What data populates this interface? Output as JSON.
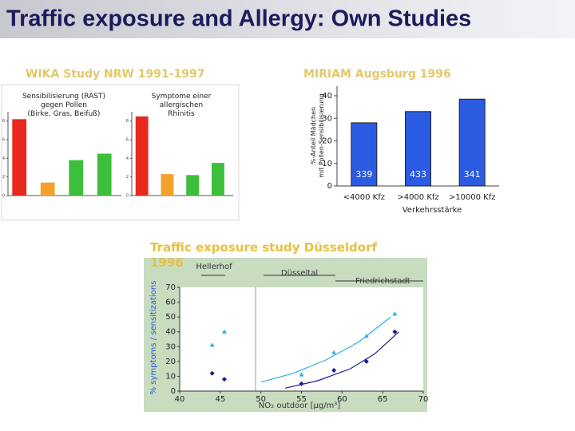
{
  "title": "Traffic exposure and Allergy: Own Studies",
  "chart_data": [
    {
      "type": "bar",
      "title": "WIKA Study NRW 1991-1997",
      "subtitle": "Sensibilisierung (RAST) gegen Pollen (Birke, Gras, Beifuß)",
      "values": [
        8.2,
        1.4,
        3.8,
        4.5
      ],
      "colors": [
        "#e8281c",
        "#f5a02a",
        "#3cc03c",
        "#3cc03c"
      ],
      "ylim": [
        0,
        9
      ],
      "yticks": [
        0,
        2,
        4,
        6,
        8
      ]
    },
    {
      "type": "bar",
      "subtitle": "Symptome einer allergischen Rhinitis",
      "values": [
        8.5,
        2.3,
        2.2,
        3.5
      ],
      "colors": [
        "#e8281c",
        "#f5a02a",
        "#3cc03c",
        "#3cc03c"
      ],
      "ylim": [
        0,
        9
      ],
      "yticks": [
        0,
        2,
        4,
        6,
        8
      ]
    },
    {
      "type": "bar",
      "title": "MIRIAM Augsburg 1996",
      "ylabel": "%-Anteil Mädchen mit Pollen-Sensibilisierung",
      "xlabel": "Verkehrsstärke",
      "categories": [
        "<4000 Kfz",
        ">4000 Kfz",
        ">10000 Kfz"
      ],
      "values": [
        28,
        33,
        38.5
      ],
      "n_labels": [
        "339",
        "433",
        "341"
      ],
      "color": "#2b5be0",
      "ylim": [
        0,
        40
      ],
      "yticks": [
        0,
        10,
        20,
        30,
        40
      ]
    },
    {
      "type": "scatter",
      "title": "Traffic exposure study Düsseldorf 1996",
      "ylabel": "% symptoms / sensitizations",
      "xlabel": "NO₂ outdoor [µg/m³]",
      "regions": [
        "Hellerhof",
        "Düsseltal",
        "Friedrichstadt"
      ],
      "xlim": [
        40,
        70
      ],
      "xticks": [
        40,
        45,
        50,
        55,
        60,
        65,
        70
      ],
      "ylim": [
        0,
        70
      ],
      "yticks": [
        0,
        10,
        20,
        30,
        40,
        50,
        60,
        70
      ],
      "series": [
        {
          "color": "#2ab0e0",
          "marker": "triangle",
          "x": [
            44,
            45.5,
            55,
            59,
            63,
            66.5
          ],
          "values": [
            31,
            40,
            11,
            26,
            37,
            52
          ]
        },
        {
          "color": "#1a1a90",
          "marker": "diamond",
          "x": [
            44,
            45.5,
            55,
            59,
            63,
            66.5
          ],
          "values": [
            12,
            8,
            5,
            14,
            20,
            40
          ]
        }
      ],
      "fits": [
        {
          "color": "#2ab0e0",
          "x": [
            50,
            54,
            58,
            62,
            66
          ],
          "values": [
            6,
            12,
            21,
            33,
            50
          ]
        },
        {
          "color": "#1a1a90",
          "x": [
            53,
            57,
            61,
            64,
            67
          ],
          "values": [
            2,
            7,
            15,
            25,
            40
          ]
        }
      ]
    }
  ]
}
